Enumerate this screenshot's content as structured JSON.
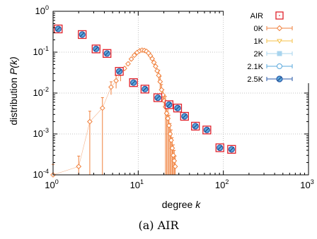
{
  "caption": "(a) AIR",
  "colors": {
    "AIR": "#e0202a",
    "0K": "#f0803c",
    "1K": "#f5c24a",
    "2K": "#a8d4ee",
    "2.1K": "#5aa8dc",
    "2.5K": "#2a5aa8"
  },
  "chart_data": {
    "type": "scatter",
    "xscale": "log",
    "yscale": "log",
    "xlim": [
      1,
      1000
    ],
    "ylim": [
      0.0001,
      1
    ],
    "xlabel_main": "degree ",
    "xlabel_italic": "k",
    "ylabel_main": "distribution ",
    "ylabel_italic": "P(k)",
    "x_ticks": [
      {
        "b": "10",
        "e": "0"
      },
      {
        "b": "10",
        "e": "1"
      },
      {
        "b": "10",
        "e": "2"
      },
      {
        "b": "10",
        "e": "3"
      }
    ],
    "y_ticks": [
      {
        "b": "10",
        "e": "-4"
      },
      {
        "b": "10",
        "e": "-3"
      },
      {
        "b": "10",
        "e": "-2"
      },
      {
        "b": "10",
        "e": "-1"
      },
      {
        "b": "10",
        "e": "0"
      }
    ],
    "grid": true,
    "legend_position": "top-right",
    "legend": [
      "AIR",
      "0K",
      "1K",
      "2K",
      "2.1K",
      "2.5K"
    ],
    "air_points": [
      [
        1.15,
        0.37
      ],
      [
        2.2,
        0.27
      ],
      [
        3.2,
        0.12
      ],
      [
        4.3,
        0.093
      ],
      [
        6.0,
        0.034
      ],
      [
        8.8,
        0.018
      ],
      [
        12.0,
        0.0125
      ],
      [
        17.0,
        0.0077
      ],
      [
        23.0,
        0.0052
      ],
      [
        29.0,
        0.0043
      ],
      [
        35.0,
        0.0027
      ],
      [
        47.0,
        0.00155
      ],
      [
        64.0,
        0.00125
      ],
      [
        91.0,
        0.00046
      ],
      [
        125.0,
        0.00042
      ]
    ],
    "zero_k_points": [
      [
        1.0,
        0.0001
      ],
      [
        2.0,
        0.00016
      ],
      [
        2.7,
        0.002
      ],
      [
        3.8,
        0.0043
      ],
      [
        4.8,
        0.014
      ],
      [
        5.5,
        0.02
      ],
      [
        6.2,
        0.03
      ],
      [
        6.9,
        0.04
      ],
      [
        7.6,
        0.052
      ],
      [
        8.3,
        0.068
      ],
      [
        9.0,
        0.084
      ],
      [
        9.7,
        0.098
      ],
      [
        10.4,
        0.108
      ],
      [
        11.1,
        0.112
      ],
      [
        11.8,
        0.11
      ],
      [
        12.5,
        0.105
      ],
      [
        13.2,
        0.095
      ],
      [
        13.9,
        0.082
      ],
      [
        14.6,
        0.069
      ],
      [
        15.3,
        0.056
      ],
      [
        16.0,
        0.045
      ],
      [
        16.7,
        0.035
      ],
      [
        17.4,
        0.027
      ],
      [
        18.1,
        0.019
      ],
      [
        18.8,
        0.012
      ],
      [
        19.5,
        0.009
      ],
      [
        20.2,
        0.0065
      ],
      [
        20.9,
        0.0046
      ],
      [
        21.6,
        0.0032
      ],
      [
        22.3,
        0.0024
      ],
      [
        23.0,
        0.0016
      ],
      [
        23.7,
        0.001
      ],
      [
        24.4,
        0.0007
      ],
      [
        25.1,
        0.00045
      ],
      [
        25.8,
        0.0003
      ],
      [
        26.5,
        0.00022
      ],
      [
        27.2,
        0.00016
      ]
    ]
  }
}
